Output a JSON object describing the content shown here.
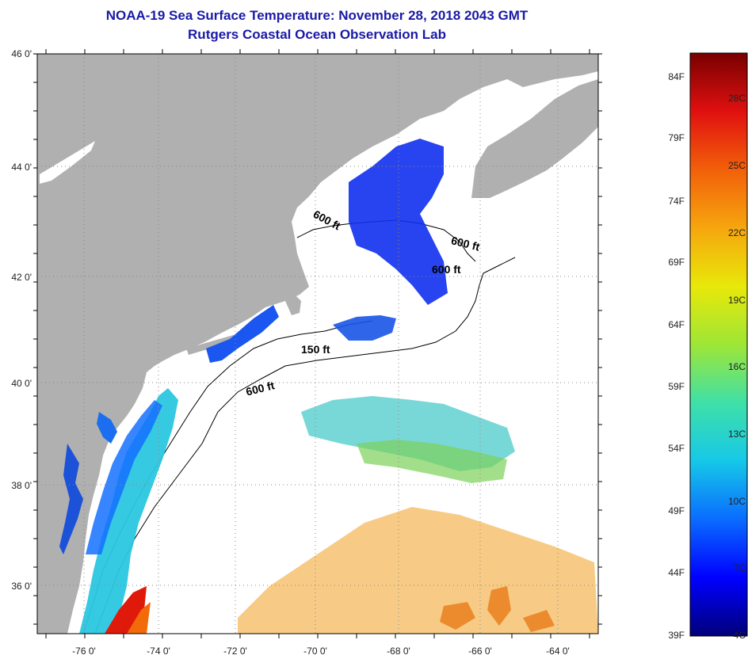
{
  "header": {
    "title": "NOAA-19 Sea Surface Temperature:  November 28, 2018 2043 GMT",
    "subtitle": "Rutgers Coastal Ocean Observation Lab"
  },
  "map": {
    "lat_labels": [
      "46 0'",
      "44 0'",
      "42 0'",
      "40 0'",
      "38 0'",
      "36 0'"
    ],
    "lon_labels": [
      "-76 0'",
      "-74 0'",
      "-72 0'",
      "-70 0'",
      "-68 0'",
      "-66 0'",
      "-64 0'"
    ],
    "contour_labels": [
      "600 ft",
      "600 ft",
      "600 ft",
      "150 ft",
      "600 ft"
    ],
    "land_color": "#b0b0b0",
    "no_data_color": "#ffffff"
  },
  "colorbar": {
    "fahrenheit_labels": [
      "84F",
      "79F",
      "74F",
      "69F",
      "64F",
      "59F",
      "54F",
      "49F",
      "44F",
      "39F"
    ],
    "celsius_labels": [
      "28C",
      "25C",
      "22C",
      "19C",
      "16C",
      "13C",
      "10C",
      "7C",
      "4C"
    ],
    "color_stops": [
      "#00007a",
      "#0000ff",
      "#0a6cff",
      "#16c8e8",
      "#3fe0a8",
      "#9ee636",
      "#e8e80a",
      "#f6a60e",
      "#f2600a",
      "#e01010",
      "#780000"
    ]
  }
}
